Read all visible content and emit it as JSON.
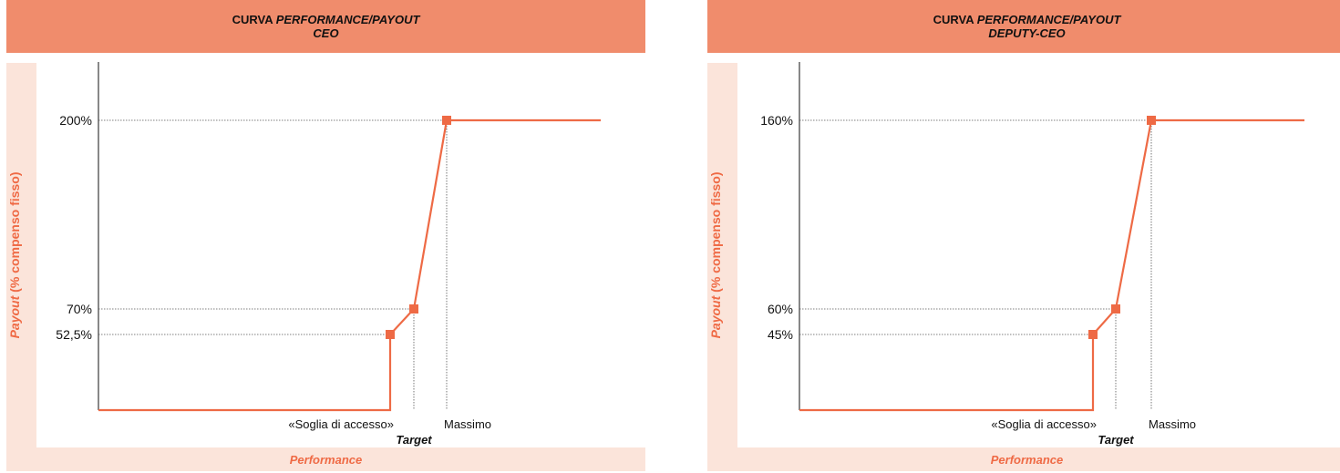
{
  "chart_data": [
    {
      "type": "line",
      "title": [
        "CURVA ",
        "PERFORMANCE/PAYOUT",
        "CEO"
      ],
      "xlabel": "Performance",
      "ylabel": [
        "Payout",
        " (% compenso fisso)"
      ],
      "colors": {
        "line": "#ee6a45",
        "title_bg": "#f08c6c",
        "axis_bg": "#fbe4da",
        "label": "#ef6a45"
      },
      "y_ticks": [
        {
          "value": 200,
          "label": "200%"
        },
        {
          "value": 70,
          "label": "70%"
        },
        {
          "value": 52.5,
          "label": "52,5%"
        }
      ],
      "x_labels": {
        "threshold": "«Soglia di accesso»",
        "target": "Target",
        "maximum": "Massimo"
      },
      "series": [
        {
          "points": [
            {
              "x": "start",
              "y": 0
            },
            {
              "x": "«Soglia di accesso»",
              "y": 0
            },
            {
              "x": "«Soglia di accesso»",
              "y": 52.5
            },
            {
              "x": "Target",
              "y": 70
            },
            {
              "x": "Massimo",
              "y": 200
            },
            {
              "x": "end",
              "y": 200
            }
          ],
          "markers": [
            {
              "x": "«Soglia di accesso»",
              "y": 52.5
            },
            {
              "x": "Target",
              "y": 70
            },
            {
              "x": "Massimo",
              "y": 200
            }
          ]
        }
      ],
      "ylim": [
        0,
        220
      ],
      "grid": false
    },
    {
      "type": "line",
      "title": [
        "CURVA ",
        "PERFORMANCE/PAYOUT",
        "DEPUTY-CEO"
      ],
      "xlabel": "Performance",
      "ylabel": [
        "Payout",
        " (% compenso fisso)"
      ],
      "colors": {
        "line": "#ee6a45",
        "title_bg": "#f08c6c",
        "axis_bg": "#fbe4da",
        "label": "#ef6a45"
      },
      "y_ticks": [
        {
          "value": 160,
          "label": "160%"
        },
        {
          "value": 60,
          "label": "60%"
        },
        {
          "value": 45,
          "label": "45%"
        }
      ],
      "x_labels": {
        "threshold": "«Soglia di accesso»",
        "target": "Target",
        "maximum": "Massimo"
      },
      "series": [
        {
          "points": [
            {
              "x": "start",
              "y": 0
            },
            {
              "x": "«Soglia di accesso»",
              "y": 0
            },
            {
              "x": "«Soglia di accesso»",
              "y": 45
            },
            {
              "x": "Target",
              "y": 60
            },
            {
              "x": "Massimo",
              "y": 160
            },
            {
              "x": "end",
              "y": 160
            }
          ],
          "markers": [
            {
              "x": "«Soglia di accesso»",
              "y": 45
            },
            {
              "x": "Target",
              "y": 60
            },
            {
              "x": "Massimo",
              "y": 160
            }
          ]
        }
      ],
      "ylim": [
        0,
        176
      ],
      "grid": false
    }
  ]
}
